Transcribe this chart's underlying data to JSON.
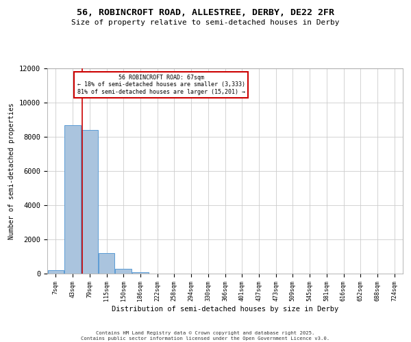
{
  "title_line1": "56, ROBINCROFT ROAD, ALLESTREE, DERBY, DE22 2FR",
  "title_line2": "Size of property relative to semi-detached houses in Derby",
  "xlabel": "Distribution of semi-detached houses by size in Derby",
  "ylabel": "Number of semi-detached properties",
  "footer_line1": "Contains HM Land Registry data © Crown copyright and database right 2025.",
  "footer_line2": "Contains public sector information licensed under the Open Government Licence v3.0.",
  "bin_labels": [
    "7sqm",
    "43sqm",
    "79sqm",
    "115sqm",
    "150sqm",
    "186sqm",
    "222sqm",
    "258sqm",
    "294sqm",
    "330sqm",
    "366sqm",
    "401sqm",
    "437sqm",
    "473sqm",
    "509sqm",
    "545sqm",
    "581sqm",
    "616sqm",
    "652sqm",
    "688sqm",
    "724sqm"
  ],
  "bar_values": [
    200,
    8700,
    8400,
    1200,
    300,
    100,
    15,
    5,
    2,
    1,
    0,
    0,
    0,
    0,
    0,
    0,
    0,
    0,
    0,
    0,
    0
  ],
  "bar_color": "#aac4de",
  "bar_edge_color": "#5b9bd5",
  "property_label": "56 ROBINCROFT ROAD: 67sqm",
  "pct_smaller": 18,
  "pct_larger": 81,
  "count_smaller": 3333,
  "count_larger": 15201,
  "vline_color": "#cc0000",
  "annotation_box_color": "#cc0000",
  "ylim": [
    0,
    12000
  ],
  "yticks": [
    0,
    2000,
    4000,
    6000,
    8000,
    10000,
    12000
  ],
  "bg_color": "#ffffff",
  "grid_color": "#cccccc",
  "vline_x_bin": 1.55
}
